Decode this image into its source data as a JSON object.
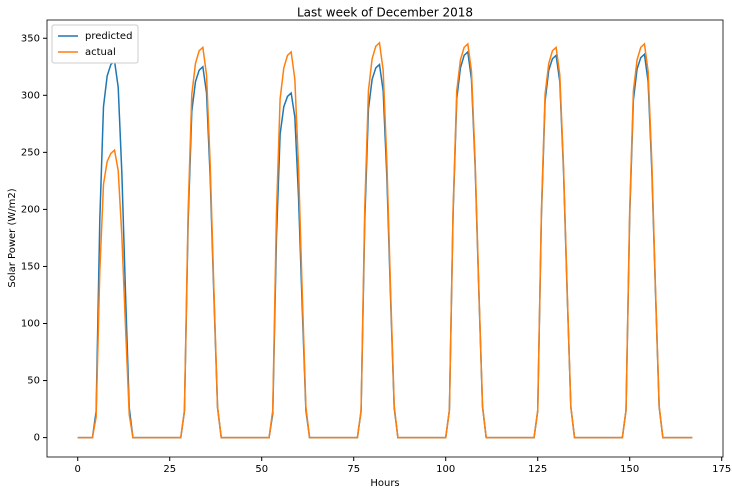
{
  "chart_data": {
    "type": "line",
    "title": "Last week of December 2018",
    "xlabel": "Hours",
    "ylabel": "Solar Power (W/m2)",
    "x": [
      0,
      1,
      2,
      3,
      4,
      5,
      6,
      7,
      8,
      9,
      10,
      11,
      12,
      13,
      14,
      15,
      16,
      17,
      18,
      19,
      20,
      21,
      22,
      23,
      24,
      25,
      26,
      27,
      28,
      29,
      30,
      31,
      32,
      33,
      34,
      35,
      36,
      37,
      38,
      39,
      40,
      41,
      42,
      43,
      44,
      45,
      46,
      47,
      48,
      49,
      50,
      51,
      52,
      53,
      54,
      55,
      56,
      57,
      58,
      59,
      60,
      61,
      62,
      63,
      64,
      65,
      66,
      67,
      68,
      69,
      70,
      71,
      72,
      73,
      74,
      75,
      76,
      77,
      78,
      79,
      80,
      81,
      82,
      83,
      84,
      85,
      86,
      87,
      88,
      89,
      90,
      91,
      92,
      93,
      94,
      95,
      96,
      97,
      98,
      99,
      100,
      101,
      102,
      103,
      104,
      105,
      106,
      107,
      108,
      109,
      110,
      111,
      112,
      113,
      114,
      115,
      116,
      117,
      118,
      119,
      120,
      121,
      122,
      123,
      124,
      125,
      126,
      127,
      128,
      129,
      130,
      131,
      132,
      133,
      134,
      135,
      136,
      137,
      138,
      139,
      140,
      141,
      142,
      143,
      144,
      145,
      146,
      147,
      148,
      149,
      150,
      151,
      152,
      153,
      154,
      155,
      156,
      157,
      158,
      159,
      160,
      161,
      162,
      163,
      164,
      165,
      166,
      167
    ],
    "series": [
      {
        "name": "predicted",
        "color": "#1f77b4",
        "values": [
          0,
          0,
          0,
          0,
          0,
          23,
          191,
          290,
          317,
          327,
          330,
          307,
          231,
          125,
          26,
          0,
          0,
          0,
          0,
          0,
          0,
          0,
          0,
          0,
          0,
          0,
          0,
          0,
          0,
          23,
          189,
          286,
          312,
          322,
          325,
          302,
          228,
          124,
          26,
          0,
          0,
          0,
          0,
          0,
          0,
          0,
          0,
          0,
          0,
          0,
          0,
          0,
          0,
          21,
          175,
          266,
          290,
          299,
          302,
          281,
          211,
          115,
          24,
          0,
          0,
          0,
          0,
          0,
          0,
          0,
          0,
          0,
          0,
          0,
          0,
          0,
          0,
          23,
          190,
          288,
          314,
          324,
          327,
          304,
          229,
          124,
          26,
          0,
          0,
          0,
          0,
          0,
          0,
          0,
          0,
          0,
          0,
          0,
          0,
          0,
          0,
          24,
          196,
          297,
          324,
          335,
          338,
          314,
          237,
          128,
          27,
          0,
          0,
          0,
          0,
          0,
          0,
          0,
          0,
          0,
          0,
          0,
          0,
          0,
          0,
          23,
          194,
          295,
          322,
          332,
          335,
          312,
          235,
          127,
          27,
          0,
          0,
          0,
          0,
          0,
          0,
          0,
          0,
          0,
          0,
          0,
          0,
          0,
          0,
          24,
          195,
          296,
          323,
          333,
          336,
          312,
          235,
          128,
          27,
          0,
          0,
          0,
          0,
          0,
          0,
          0,
          0,
          0
        ]
      },
      {
        "name": "actual",
        "color": "#ff7f0e",
        "values": [
          0,
          0,
          0,
          0,
          0,
          18,
          146,
          222,
          242,
          249,
          252,
          234,
          176,
          96,
          20,
          0,
          0,
          0,
          0,
          0,
          0,
          0,
          0,
          0,
          0,
          0,
          0,
          0,
          0,
          24,
          198,
          301,
          328,
          339,
          342,
          318,
          239,
          130,
          27,
          0,
          0,
          0,
          0,
          0,
          0,
          0,
          0,
          0,
          0,
          0,
          0,
          0,
          0,
          24,
          196,
          297,
          324,
          335,
          338,
          314,
          237,
          128,
          27,
          0,
          0,
          0,
          0,
          0,
          0,
          0,
          0,
          0,
          0,
          0,
          0,
          0,
          0,
          24,
          201,
          304,
          332,
          343,
          346,
          322,
          242,
          131,
          28,
          0,
          0,
          0,
          0,
          0,
          0,
          0,
          0,
          0,
          0,
          0,
          0,
          0,
          0,
          24,
          200,
          304,
          331,
          342,
          345,
          321,
          242,
          131,
          28,
          0,
          0,
          0,
          0,
          0,
          0,
          0,
          0,
          0,
          0,
          0,
          0,
          0,
          0,
          24,
          198,
          301,
          328,
          339,
          342,
          318,
          239,
          130,
          27,
          0,
          0,
          0,
          0,
          0,
          0,
          0,
          0,
          0,
          0,
          0,
          0,
          0,
          0,
          24,
          200,
          304,
          331,
          342,
          345,
          321,
          242,
          131,
          28,
          0,
          0,
          0,
          0,
          0,
          0,
          0,
          0,
          0
        ]
      }
    ],
    "xlim": [
      -8.35,
      175.35
    ],
    "ylim": [
      -17,
      366
    ],
    "xticks": [
      0,
      25,
      50,
      75,
      100,
      125,
      150,
      175
    ],
    "yticks": [
      0,
      50,
      100,
      150,
      200,
      250,
      300,
      350
    ],
    "legend": "upper left"
  }
}
